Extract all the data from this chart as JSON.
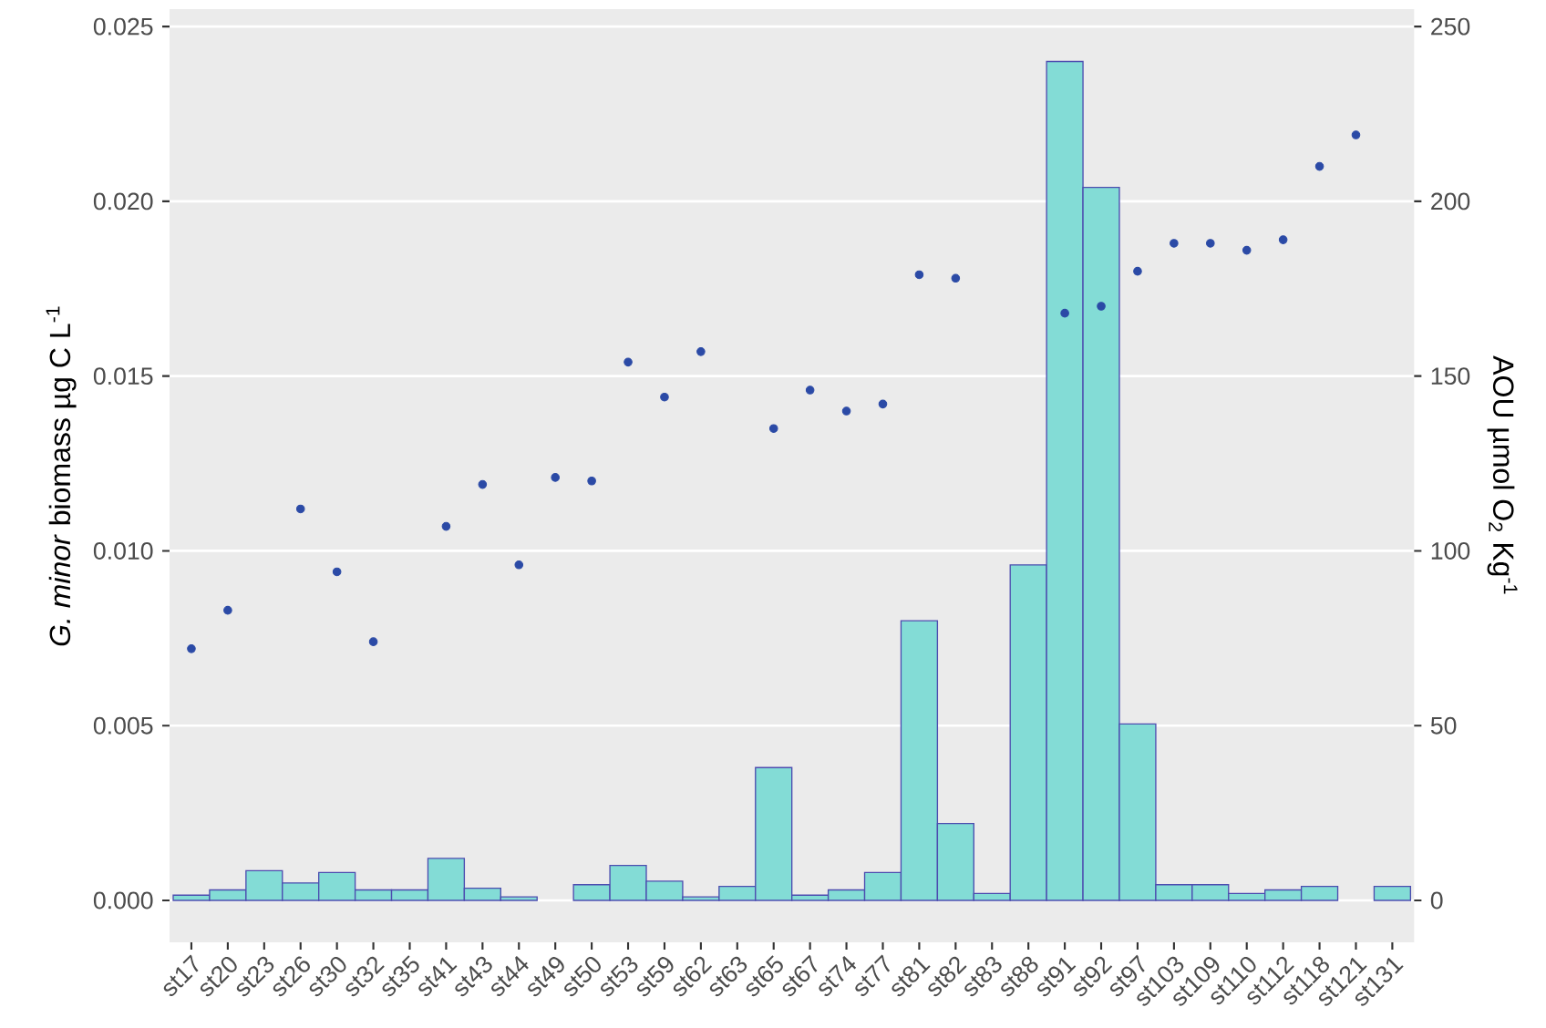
{
  "chart_data": {
    "type": "bar",
    "categories": [
      "st17",
      "st20",
      "st23",
      "st26",
      "st30",
      "st32",
      "st35",
      "st41",
      "st43",
      "st44",
      "st49",
      "st50",
      "st53",
      "st59",
      "st62",
      "st63",
      "st65",
      "st67",
      "st74",
      "st77",
      "st81",
      "st82",
      "st83",
      "st88",
      "st91",
      "st92",
      "st97",
      "st103",
      "st109",
      "st110",
      "st112",
      "st118",
      "st121",
      "st131"
    ],
    "series": [
      {
        "color": "#83dcd6",
        "values": [
          0.00015,
          0.0003,
          0.00085,
          0.0005,
          0.0008,
          0.0003,
          0.0003,
          0.0012,
          0.00035,
          0.0001,
          0,
          0.00045,
          0.001,
          0.00055,
          0.0001,
          0.0004,
          0.0038,
          0.00015,
          0.0003,
          0.0008,
          0.008,
          0.0022,
          0.0002,
          0.0096,
          0.024,
          0.0204,
          0.00505,
          0.00045,
          0.00045,
          0.0002,
          0.0003,
          0.0004,
          0,
          0.0004
        ]
      },
      {
        "type": "scatter",
        "axis": "y2",
        "color": "#2b4aa6",
        "values": [
          72,
          83,
          null,
          112,
          94,
          74,
          null,
          107,
          119,
          96,
          121,
          120,
          154,
          144,
          157,
          null,
          135,
          146,
          140,
          142,
          179,
          178,
          null,
          null,
          168,
          170,
          180,
          188,
          188,
          186,
          189,
          210,
          219,
          null
        ]
      }
    ],
    "ylabel": "*G. minor* biomass µg C L$^{-1}$",
    "y2label": "AOU µmol O$_{2}$ Kg$^{-1}$",
    "ylim": [
      -0.0012,
      0.0255
    ],
    "yticks": [
      {
        "value": 0,
        "label": "0.000"
      },
      {
        "value": 0.005,
        "label": "0.005"
      },
      {
        "value": 0.01,
        "label": "0.010"
      },
      {
        "value": 0.015,
        "label": "0.015"
      },
      {
        "value": 0.02,
        "label": "0.020"
      },
      {
        "value": 0.025,
        "label": "0.025"
      }
    ],
    "y2lim": [
      -12,
      255
    ],
    "y2ticks": [
      0,
      50,
      100,
      150,
      200,
      250
    ],
    "grid": "y",
    "marker": "circle"
  }
}
